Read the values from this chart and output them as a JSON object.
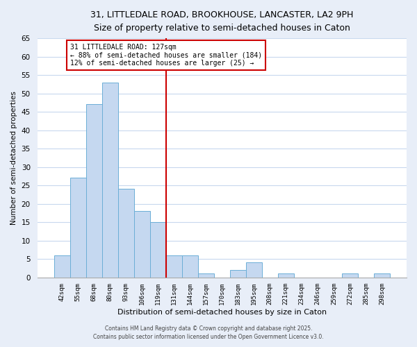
{
  "title": "31, LITTLEDALE ROAD, BROOKHOUSE, LANCASTER, LA2 9PH",
  "subtitle": "Size of property relative to semi-detached houses in Caton",
  "xlabel": "Distribution of semi-detached houses by size in Caton",
  "ylabel": "Number of semi-detached properties",
  "bar_labels": [
    "42sqm",
    "55sqm",
    "68sqm",
    "80sqm",
    "93sqm",
    "106sqm",
    "119sqm",
    "131sqm",
    "144sqm",
    "157sqm",
    "170sqm",
    "183sqm",
    "195sqm",
    "208sqm",
    "221sqm",
    "234sqm",
    "246sqm",
    "259sqm",
    "272sqm",
    "285sqm",
    "298sqm"
  ],
  "bar_values": [
    6,
    27,
    47,
    53,
    24,
    18,
    15,
    6,
    6,
    1,
    0,
    2,
    4,
    0,
    1,
    0,
    0,
    0,
    1,
    0,
    1
  ],
  "bar_color": "#c5d8f0",
  "bar_edge_color": "#6baed6",
  "vline_color": "#cc0000",
  "annotation_title": "31 LITTLEDALE ROAD: 127sqm",
  "annotation_line1": "← 88% of semi-detached houses are smaller (184)",
  "annotation_line2": "12% of semi-detached houses are larger (25) →",
  "annotation_box_edge": "#cc0000",
  "ylim": [
    0,
    65
  ],
  "yticks": [
    0,
    5,
    10,
    15,
    20,
    25,
    30,
    35,
    40,
    45,
    50,
    55,
    60,
    65
  ],
  "footer1": "Contains HM Land Registry data © Crown copyright and database right 2025.",
  "footer2": "Contains public sector information licensed under the Open Government Licence v3.0.",
  "bg_color": "#e8eef8",
  "plot_bg_color": "#ffffff",
  "grid_color": "#c8d8ee"
}
